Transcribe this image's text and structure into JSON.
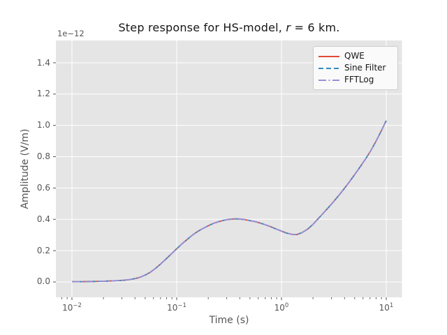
{
  "figure": {
    "title_prefix": "Step response for HS-model, ",
    "title_var": "r",
    "title_rest": " = 6 km.",
    "offset_label": "1e−12",
    "xlabel": "Time (s)",
    "ylabel": "Amplitude (V/m)"
  },
  "axes": {
    "x_ticks": [
      {
        "base": "10",
        "exp": "−2"
      },
      {
        "base": "10",
        "exp": "−1"
      },
      {
        "base": "10",
        "exp": "0"
      },
      {
        "base": "10",
        "exp": "1"
      }
    ],
    "y_tick_labels": [
      "0.0",
      "0.2",
      "0.4",
      "0.6",
      "0.8",
      "1.0",
      "1.2",
      "1.4"
    ]
  },
  "legend": {
    "items": [
      {
        "label": "QWE",
        "color": "#E24A33",
        "linestyle": "solid"
      },
      {
        "label": "Sine Filter",
        "color": "#348ABD",
        "linestyle": "dashed"
      },
      {
        "label": "FFTLog",
        "color": "#988ED5",
        "linestyle": "dashdot"
      }
    ]
  },
  "colors": {
    "figure_bg": "#ffffff",
    "plot_bg": "#e5e5e5",
    "grid": "#ffffff",
    "tick": "#555555",
    "label_text": "#555555",
    "title_text": "#161616",
    "legend_bg": "#fafafa",
    "legend_border": "#cccccc"
  },
  "chart_data": {
    "type": "line",
    "title": "Step response for HS-model, r = 6 km.",
    "xlabel": "Time (s)",
    "ylabel": "Amplitude (V/m)",
    "xscale": "log",
    "yscale": "linear",
    "y_offset_factor": "1e-12",
    "xlim": [
      0.00703,
      14.1
    ],
    "ylim_1e12": [
      -0.098,
      1.543
    ],
    "x_tick_values": [
      0.01,
      0.1,
      1,
      10
    ],
    "y_tick_values_1e12": [
      0.0,
      0.2,
      0.4,
      0.6,
      0.8,
      1.0,
      1.2,
      1.4
    ],
    "grid": "major gridlines, white on gray background",
    "legend_loc": "upper right",
    "series_coincident": true,
    "series": [
      {
        "name": "QWE",
        "color": "#E24A33",
        "linestyle": "solid"
      },
      {
        "name": "Sine Filter",
        "color": "#348ABD",
        "linestyle": "dashed"
      },
      {
        "name": "FFTLog",
        "color": "#988ED5",
        "linestyle": "dashdot"
      }
    ],
    "x": [
      0.01,
      0.0112,
      0.0126,
      0.0141,
      0.0158,
      0.0178,
      0.02,
      0.0224,
      0.0251,
      0.0282,
      0.0316,
      0.0355,
      0.0398,
      0.0447,
      0.0501,
      0.0562,
      0.0631,
      0.0708,
      0.0794,
      0.0891,
      0.1,
      0.112,
      0.126,
      0.141,
      0.158,
      0.178,
      0.2,
      0.224,
      0.251,
      0.282,
      0.316,
      0.355,
      0.398,
      0.447,
      0.501,
      0.562,
      0.631,
      0.708,
      0.794,
      0.891,
      1.0,
      1.12,
      1.26,
      1.41,
      1.58,
      1.78,
      2.0,
      2.24,
      2.51,
      2.82,
      3.16,
      3.55,
      3.98,
      4.47,
      5.01,
      5.62,
      6.31,
      7.08,
      7.94,
      8.91,
      10.0
    ],
    "y_1e12": [
      0.002,
      0.002,
      0.002,
      0.003,
      0.003,
      0.004,
      0.005,
      0.006,
      0.007,
      0.009,
      0.011,
      0.015,
      0.021,
      0.03,
      0.044,
      0.063,
      0.088,
      0.117,
      0.148,
      0.18,
      0.212,
      0.243,
      0.272,
      0.299,
      0.322,
      0.342,
      0.359,
      0.374,
      0.385,
      0.394,
      0.4,
      0.403,
      0.402,
      0.398,
      0.392,
      0.385,
      0.376,
      0.364,
      0.352,
      0.338,
      0.325,
      0.312,
      0.304,
      0.303,
      0.316,
      0.338,
      0.368,
      0.404,
      0.44,
      0.477,
      0.515,
      0.555,
      0.597,
      0.641,
      0.687,
      0.734,
      0.783,
      0.836,
      0.896,
      0.961,
      1.03
    ]
  }
}
